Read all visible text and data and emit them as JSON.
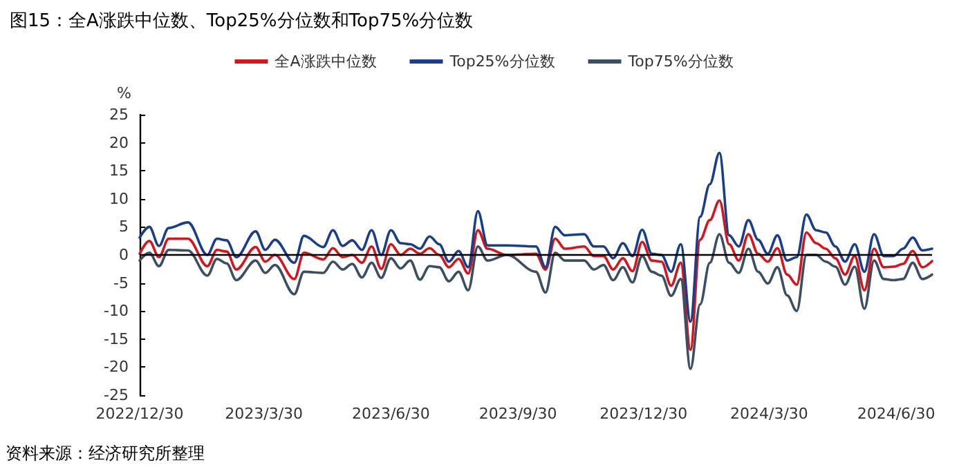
{
  "chart_data": {
    "type": "line",
    "title": "图15：全A涨跌中位数、Top25%分位数和Top75%分位数",
    "ylabel": "%",
    "annotations": [
      "资料来源：经济研究所整理"
    ],
    "x": [
      "2022-12-30",
      "2023-01-06",
      "2023-01-13",
      "2023-01-20",
      "2023-02-03",
      "2023-02-17",
      "2023-02-24",
      "2023-03-03",
      "2023-03-10",
      "2023-03-24",
      "2023-03-31",
      "2023-04-07",
      "2023-04-21",
      "2023-04-28",
      "2023-05-12",
      "2023-05-19",
      "2023-05-26",
      "2023-06-02",
      "2023-06-09",
      "2023-06-16",
      "2023-06-23",
      "2023-06-30",
      "2023-07-07",
      "2023-07-14",
      "2023-07-21",
      "2023-07-28",
      "2023-08-04",
      "2023-08-11",
      "2023-08-18",
      "2023-08-25",
      "2023-09-01",
      "2023-09-08",
      "2023-09-22",
      "2023-10-13",
      "2023-10-20",
      "2023-10-27",
      "2023-11-03",
      "2023-11-17",
      "2023-11-24",
      "2023-12-01",
      "2023-12-08",
      "2023-12-15",
      "2023-12-22",
      "2023-12-29",
      "2024-01-05",
      "2024-01-12",
      "2024-01-19",
      "2024-01-26",
      "2024-02-02",
      "2024-02-09",
      "2024-02-16",
      "2024-02-23",
      "2024-03-01",
      "2024-03-08",
      "2024-03-15",
      "2024-03-22",
      "2024-03-29",
      "2024-04-05",
      "2024-04-12",
      "2024-04-19",
      "2024-04-26",
      "2024-05-03",
      "2024-05-10",
      "2024-05-17",
      "2024-05-24",
      "2024-05-31",
      "2024-06-07",
      "2024-06-14",
      "2024-06-21",
      "2024-06-28",
      "2024-07-05",
      "2024-07-12",
      "2024-07-19",
      "2024-07-26"
    ],
    "series": [
      {
        "name": "全A涨跌中位数",
        "color": "#d7141a",
        "values": [
          0.2,
          2.5,
          -0.4,
          2.9,
          2.9,
          -2,
          0.9,
          0.6,
          -2.6,
          1.4,
          -1.2,
          0,
          -4.3,
          0.4,
          -0.8,
          1.2,
          -0.4,
          0,
          -1.4,
          1.5,
          -2.5,
          1.9,
          0,
          1.1,
          0.2,
          1.2,
          0,
          -2.2,
          -0.7,
          -3.3,
          4.4,
          1.1,
          0,
          0.2,
          -2.6,
          2.9,
          1.1,
          1.5,
          -0.2,
          -0.2,
          -2.6,
          -0.6,
          -2.9,
          2.3,
          -1,
          -1.2,
          -5.5,
          -1.4,
          -16.9,
          2.7,
          6.2,
          9.7,
          1.9,
          -1,
          3.7,
          0.2,
          -1.2,
          1.2,
          -3.5,
          -5.3,
          4,
          2.1,
          1.1,
          -0.6,
          -3.5,
          -0.2,
          -6.3,
          1.1,
          -2.2,
          -2.1,
          -1.6,
          0.7,
          -2.2,
          -1.1
        ]
      },
      {
        "name": "Top25%分位数",
        "color": "#1a3f8a",
        "values": [
          3.1,
          5,
          1.6,
          4.8,
          5.8,
          0,
          2.9,
          2.6,
          -0.4,
          4.2,
          0.9,
          2.7,
          -1.4,
          3.4,
          1.4,
          4.4,
          1.6,
          2.6,
          0.9,
          4.4,
          0,
          4.4,
          2.1,
          1.9,
          1.1,
          3.3,
          1.9,
          -1.2,
          0.7,
          -2.2,
          7.8,
          1.7,
          1.7,
          1.5,
          -2.2,
          5,
          3.5,
          3.7,
          1.5,
          1.5,
          -0.6,
          2.1,
          -0.2,
          4.5,
          0.2,
          0,
          -3,
          1.9,
          -11.9,
          6.8,
          12.6,
          18.2,
          3.5,
          1.5,
          6.2,
          2.7,
          0.2,
          3.5,
          -1,
          -0.4,
          7.2,
          4.4,
          4,
          1.5,
          -1.2,
          1.9,
          -3,
          3.7,
          -0.2,
          -0.2,
          1.1,
          3.1,
          0.8,
          1.1
        ]
      },
      {
        "name": "Top75%分位数",
        "color": "#3c4f62",
        "values": [
          -1,
          0.4,
          -2,
          0.9,
          0.8,
          -3.7,
          -0.7,
          -1.5,
          -4.5,
          -1,
          -3.2,
          -1.8,
          -7,
          -3,
          -3.2,
          -1.2,
          -2.6,
          -1.6,
          -4,
          -1.4,
          -4.1,
          -0.6,
          -2.4,
          -1,
          -4.4,
          -2,
          -2.2,
          -4.7,
          -3,
          -6.3,
          1.5,
          -1,
          0,
          -3,
          -6.7,
          0.4,
          -1,
          -1,
          -2.6,
          -1.8,
          -4.5,
          -2.2,
          -4.9,
          -0.2,
          -3,
          -3.7,
          -7.3,
          -4.3,
          -20.3,
          -8.8,
          -1.4,
          3.7,
          -1.4,
          -3.2,
          1.1,
          -3,
          -5.1,
          -2.2,
          -7.2,
          -10,
          0,
          0,
          -1.2,
          -2.1,
          -5.3,
          -2.1,
          -9.6,
          -1,
          -4.3,
          -4.5,
          -4.3,
          -1.4,
          -4.3,
          -3.5
        ]
      }
    ],
    "xlim": [
      "2022-12-30",
      "2024-07-26"
    ],
    "xticks": [
      {
        "value": "2022-12-30",
        "label": "2022/12/30"
      },
      {
        "value": "2023-03-30",
        "label": "2023/3/30"
      },
      {
        "value": "2023-06-30",
        "label": "2023/6/30"
      },
      {
        "value": "2023-09-30",
        "label": "2023/9/30"
      },
      {
        "value": "2023-12-30",
        "label": "2023/12/30"
      },
      {
        "value": "2024-03-30",
        "label": "2024/3/30"
      },
      {
        "value": "2024-06-30",
        "label": "2024/6/30"
      }
    ],
    "ylim": [
      -25,
      25
    ],
    "yticks": [
      -25,
      -20,
      -15,
      -10,
      -5,
      0,
      5,
      10,
      15,
      20,
      25
    ],
    "ref_lines": [
      {
        "axis": "y",
        "value": 0,
        "color": "#000000"
      }
    ],
    "grid": false,
    "legend": "top",
    "marker": "none",
    "line_style": "solid"
  }
}
